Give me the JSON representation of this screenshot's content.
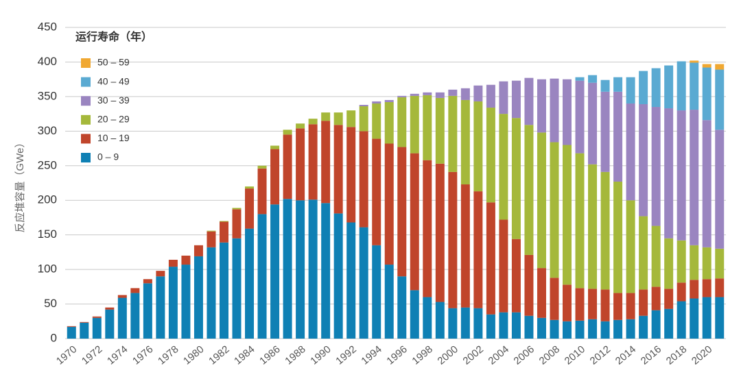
{
  "chart_data": {
    "type": "stacked_bar",
    "y_label": "反应堆容量（GWe）",
    "legend_title": "运行寿命（年）",
    "categories": [
      "1970",
      null,
      "1972",
      null,
      "1974",
      null,
      "1976",
      null,
      "1978",
      null,
      "1980",
      null,
      "1982",
      null,
      "1984",
      null,
      "1986",
      null,
      "1988",
      null,
      "1990",
      null,
      "1992",
      null,
      "1994",
      null,
      "1996",
      null,
      "1998",
      null,
      "2000",
      null,
      "2002",
      null,
      "2004",
      null,
      "2006",
      null,
      "2008",
      null,
      "2010",
      null,
      "2012",
      null,
      "2014",
      null,
      "2016",
      null,
      "2018",
      null,
      "2020",
      null
    ],
    "series": [
      {
        "name": "0 – 9",
        "color": "#0f80b4",
        "values": [
          17,
          23,
          30,
          42,
          59,
          66,
          80,
          90,
          104,
          107,
          119,
          132,
          139,
          145,
          159,
          180,
          194,
          202,
          200,
          201,
          196,
          181,
          168,
          161,
          135,
          107,
          90,
          70,
          60,
          53,
          44,
          45,
          44,
          35,
          38,
          38,
          33,
          30,
          27,
          25,
          26,
          28,
          25,
          27,
          28,
          33,
          41,
          43,
          54,
          58,
          60,
          60
        ]
      },
      {
        "name": "10 – 19",
        "color": "#c0452b",
        "values": [
          1,
          1,
          2,
          3,
          4,
          7,
          6,
          8,
          10,
          13,
          16,
          23,
          30,
          42,
          58,
          66,
          80,
          93,
          104,
          109,
          119,
          128,
          138,
          139,
          154,
          175,
          187,
          198,
          198,
          200,
          197,
          178,
          169,
          162,
          134,
          106,
          88,
          72,
          61,
          53,
          47,
          44,
          46,
          39,
          38,
          38,
          34,
          29,
          27,
          27,
          26,
          27
        ]
      },
      {
        "name": "20 – 29",
        "color": "#a5b83b",
        "values": [
          0,
          0,
          0,
          0,
          0,
          0,
          0,
          0,
          0,
          0,
          0,
          1,
          1,
          2,
          3,
          4,
          5,
          7,
          7,
          8,
          12,
          18,
          24,
          36,
          51,
          60,
          72,
          83,
          94,
          95,
          110,
          122,
          130,
          137,
          153,
          175,
          188,
          196,
          196,
          202,
          195,
          180,
          170,
          161,
          134,
          106,
          88,
          73,
          61,
          50,
          46,
          43
        ]
      },
      {
        "name": "30 – 39",
        "color": "#9a85c0",
        "values": [
          0,
          0,
          0,
          0,
          0,
          0,
          0,
          0,
          0,
          0,
          0,
          0,
          0,
          0,
          0,
          0,
          0,
          0,
          0,
          0,
          0,
          0,
          0,
          2,
          3,
          3,
          2,
          3,
          4,
          8,
          9,
          17,
          23,
          33,
          47,
          54,
          68,
          77,
          92,
          95,
          105,
          118,
          116,
          130,
          140,
          162,
          172,
          188,
          188,
          196,
          184,
          172
        ]
      },
      {
        "name": "40 – 49",
        "color": "#5aaad2",
        "values": [
          0,
          0,
          0,
          0,
          0,
          0,
          0,
          0,
          0,
          0,
          0,
          0,
          0,
          0,
          0,
          0,
          0,
          0,
          0,
          0,
          0,
          0,
          0,
          0,
          0,
          0,
          0,
          0,
          0,
          0,
          0,
          0,
          0,
          0,
          0,
          0,
          0,
          0,
          0,
          0,
          5,
          11,
          17,
          21,
          38,
          48,
          56,
          62,
          71,
          68,
          76,
          87
        ]
      },
      {
        "name": "50 – 59",
        "color": "#f0a832",
        "values": [
          0,
          0,
          0,
          0,
          0,
          0,
          0,
          0,
          0,
          0,
          0,
          0,
          0,
          0,
          0,
          0,
          0,
          0,
          0,
          0,
          0,
          0,
          0,
          0,
          0,
          0,
          0,
          0,
          0,
          0,
          0,
          0,
          0,
          0,
          0,
          0,
          0,
          0,
          0,
          0,
          0,
          0,
          0,
          0,
          0,
          0,
          0,
          0,
          0,
          3,
          5,
          8
        ]
      }
    ],
    "ylim": [
      0,
      450
    ],
    "yticks": [
      0,
      50,
      100,
      150,
      200,
      250,
      300,
      350,
      400,
      450
    ],
    "grid": true
  }
}
